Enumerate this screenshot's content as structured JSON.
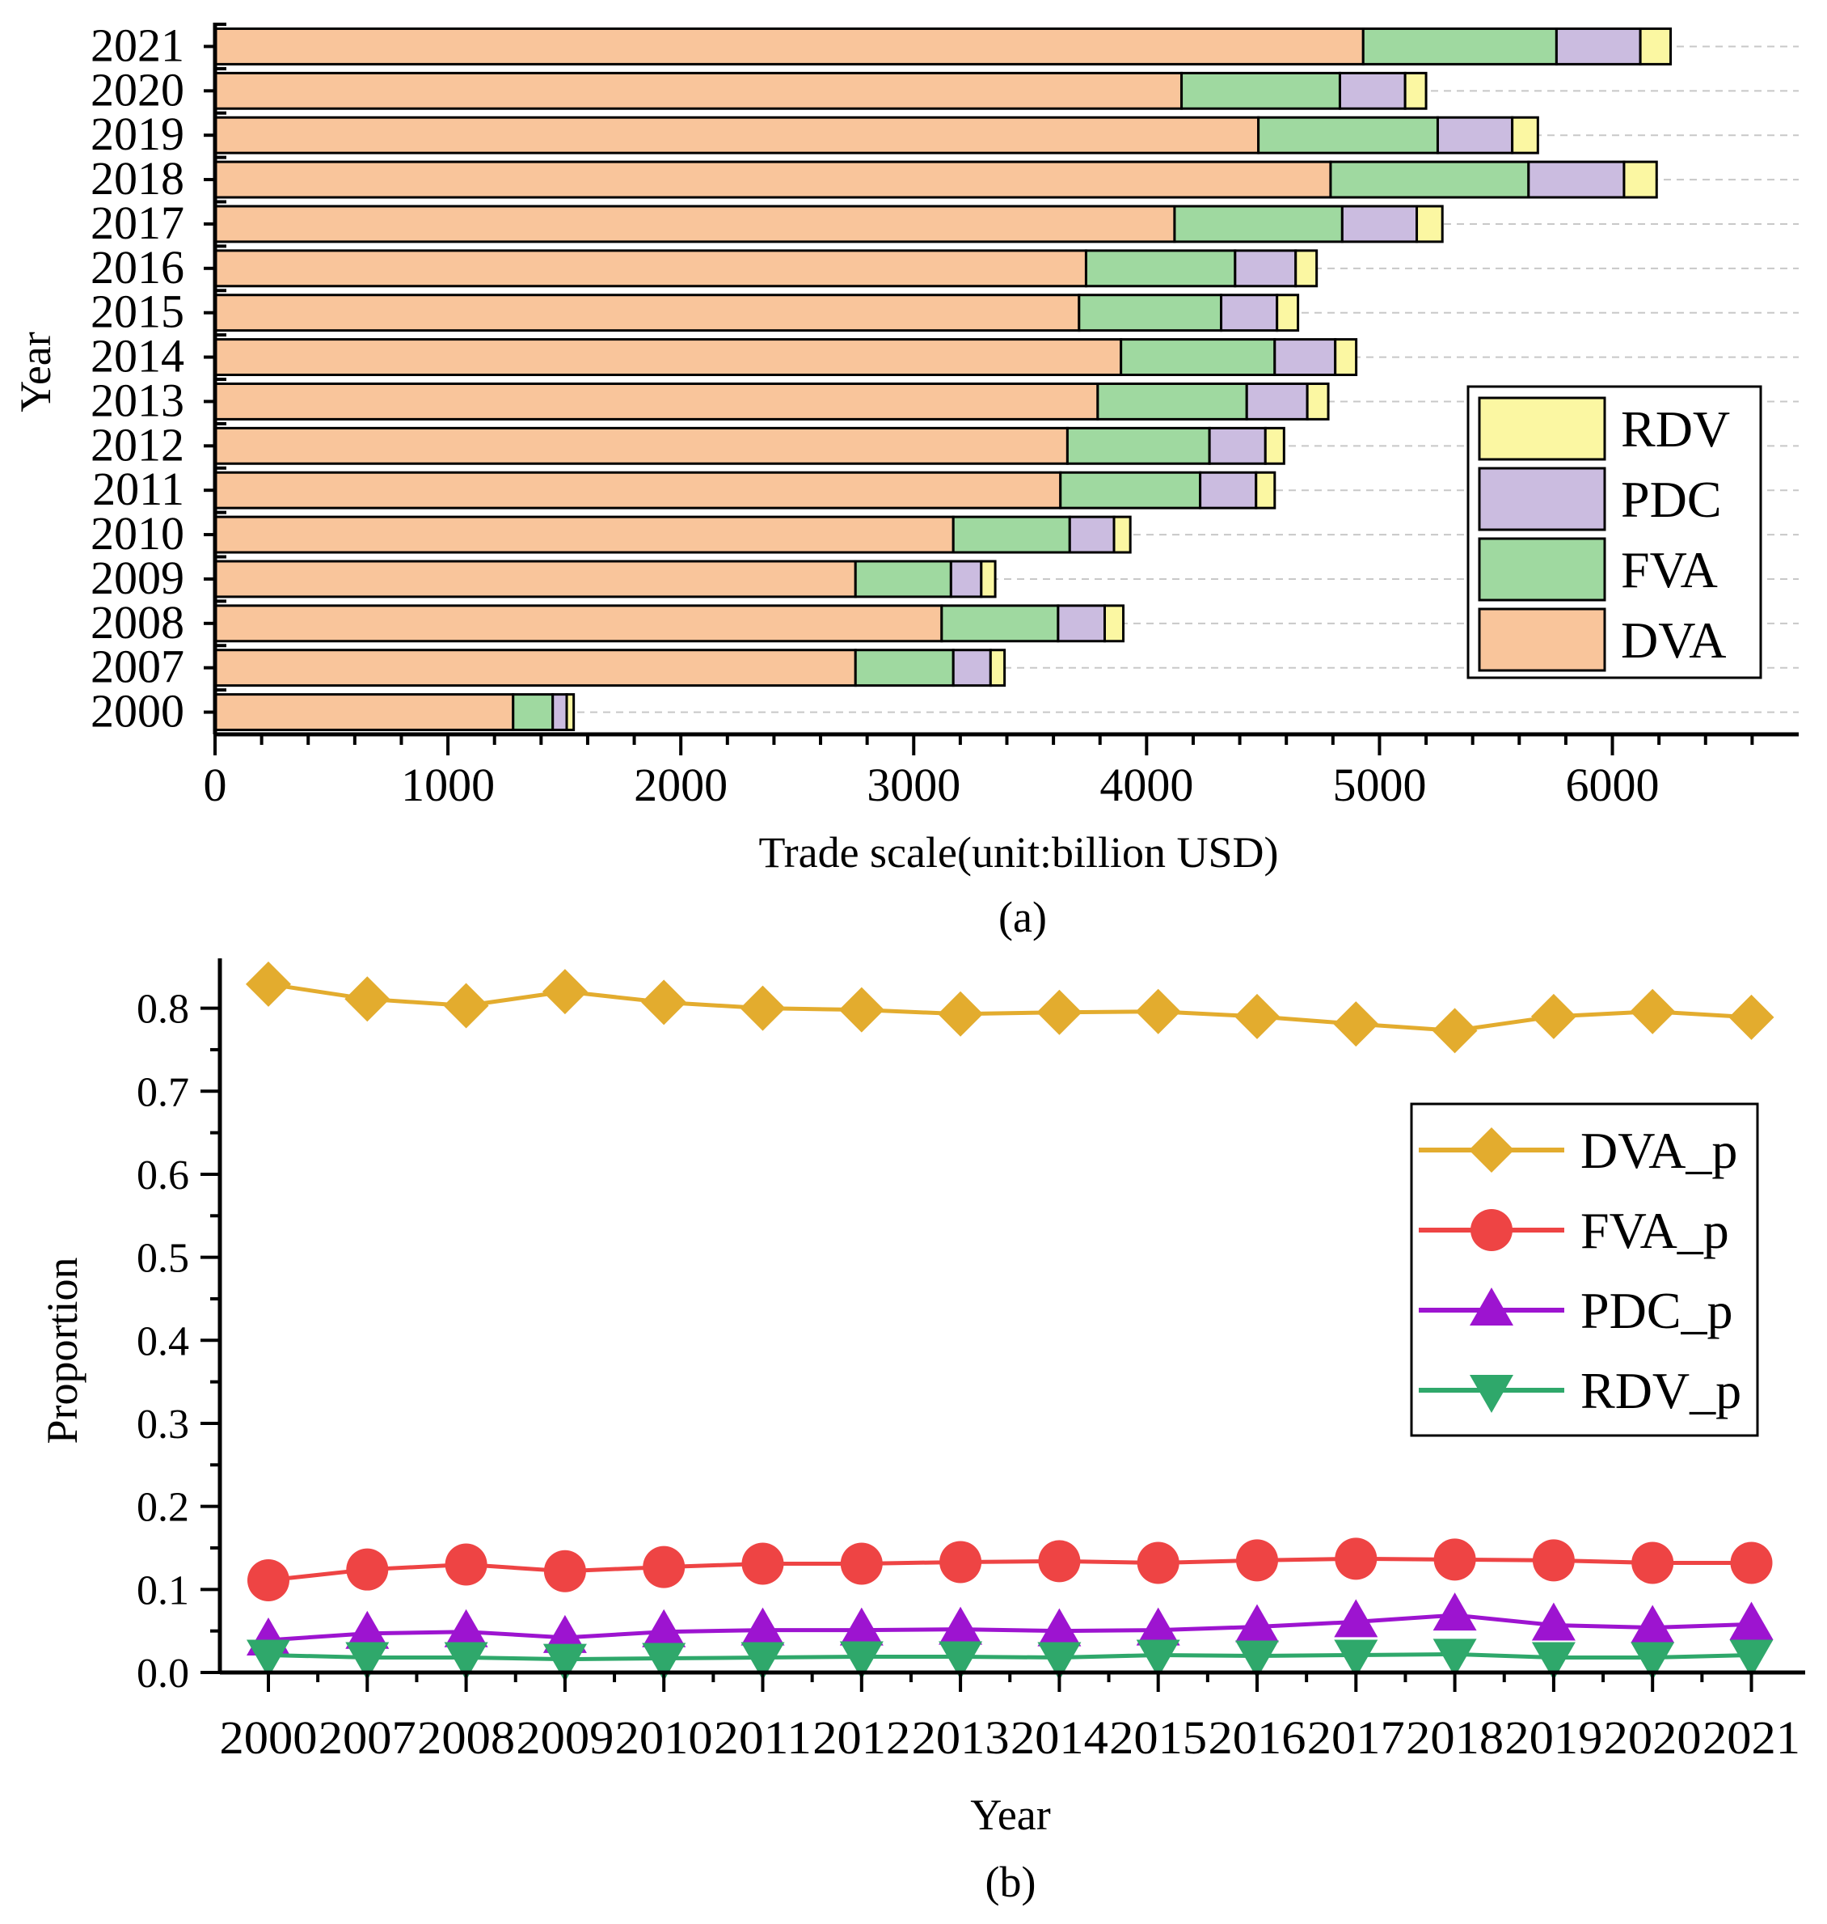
{
  "chart_data": [
    {
      "type": "bar",
      "orientation": "horizontal",
      "stacked": true,
      "caption": "(a)",
      "categories": [
        "2000",
        "2007",
        "2008",
        "2009",
        "2010",
        "2011",
        "2012",
        "2013",
        "2014",
        "2015",
        "2016",
        "2017",
        "2018",
        "2019",
        "2020",
        "2021"
      ],
      "series": [
        {
          "name": "DVA",
          "color": "#f9c59b",
          "values": [
            1280,
            2750,
            3120,
            2750,
            3170,
            3630,
            3660,
            3790,
            3890,
            3710,
            3740,
            4120,
            4790,
            4480,
            4150,
            4930
          ]
        },
        {
          "name": "FVA",
          "color": "#9fd9a0",
          "values": [
            170,
            420,
            500,
            410,
            500,
            600,
            610,
            640,
            660,
            610,
            640,
            720,
            850,
            770,
            680,
            830
          ]
        },
        {
          "name": "PDC",
          "color": "#cbbce0",
          "values": [
            60,
            160,
            200,
            130,
            190,
            240,
            240,
            260,
            260,
            240,
            260,
            320,
            410,
            320,
            280,
            360
          ]
        },
        {
          "name": "RDV",
          "color": "#fbf7a2",
          "values": [
            30,
            60,
            80,
            60,
            70,
            80,
            80,
            90,
            90,
            90,
            90,
            110,
            140,
            110,
            90,
            130
          ]
        }
      ],
      "legend_order": [
        "RDV",
        "PDC",
        "FVA",
        "DVA"
      ],
      "legend_position": "lower-right",
      "xlabel": "Trade scale(unit:billion USD)",
      "ylabel": "Year",
      "xlim": [
        0,
        6800
      ],
      "xticks": [
        "0",
        "1000",
        "2000",
        "3000",
        "4000",
        "5000",
        "6000"
      ],
      "grid": "horizontal dashed"
    },
    {
      "type": "line",
      "caption": "(b)",
      "x": [
        "2000",
        "2007",
        "2008",
        "2009",
        "2010",
        "2011",
        "2012",
        "2013",
        "2014",
        "2015",
        "2016",
        "2017",
        "2018",
        "2019",
        "2020",
        "2021"
      ],
      "series": [
        {
          "name": "DVA_p",
          "color": "#e3ac2e",
          "marker": "diamond",
          "values": [
            0.829,
            0.811,
            0.803,
            0.82,
            0.807,
            0.8,
            0.798,
            0.793,
            0.795,
            0.796,
            0.79,
            0.781,
            0.773,
            0.79,
            0.796,
            0.789
          ]
        },
        {
          "name": "FVA_p",
          "color": "#ee4444",
          "marker": "circle",
          "values": [
            0.111,
            0.124,
            0.13,
            0.122,
            0.127,
            0.131,
            0.131,
            0.133,
            0.134,
            0.132,
            0.135,
            0.137,
            0.136,
            0.135,
            0.132,
            0.132
          ]
        },
        {
          "name": "PDC_p",
          "color": "#9d14d0",
          "marker": "triangle-up",
          "values": [
            0.039,
            0.047,
            0.049,
            0.042,
            0.049,
            0.051,
            0.051,
            0.052,
            0.05,
            0.051,
            0.055,
            0.061,
            0.069,
            0.057,
            0.054,
            0.058
          ]
        },
        {
          "name": "RDV_p",
          "color": "#2fa86b",
          "marker": "triangle-down",
          "values": [
            0.021,
            0.018,
            0.018,
            0.016,
            0.017,
            0.018,
            0.019,
            0.019,
            0.018,
            0.021,
            0.02,
            0.021,
            0.022,
            0.018,
            0.018,
            0.021
          ]
        }
      ],
      "legend_position": "right",
      "xlabel": "Year",
      "ylabel": "Proportion",
      "ylim": [
        0.0,
        0.86
      ],
      "yticks": [
        "0.0",
        "0.1",
        "0.2",
        "0.3",
        "0.4",
        "0.5",
        "0.6",
        "0.7",
        "0.8"
      ]
    }
  ]
}
